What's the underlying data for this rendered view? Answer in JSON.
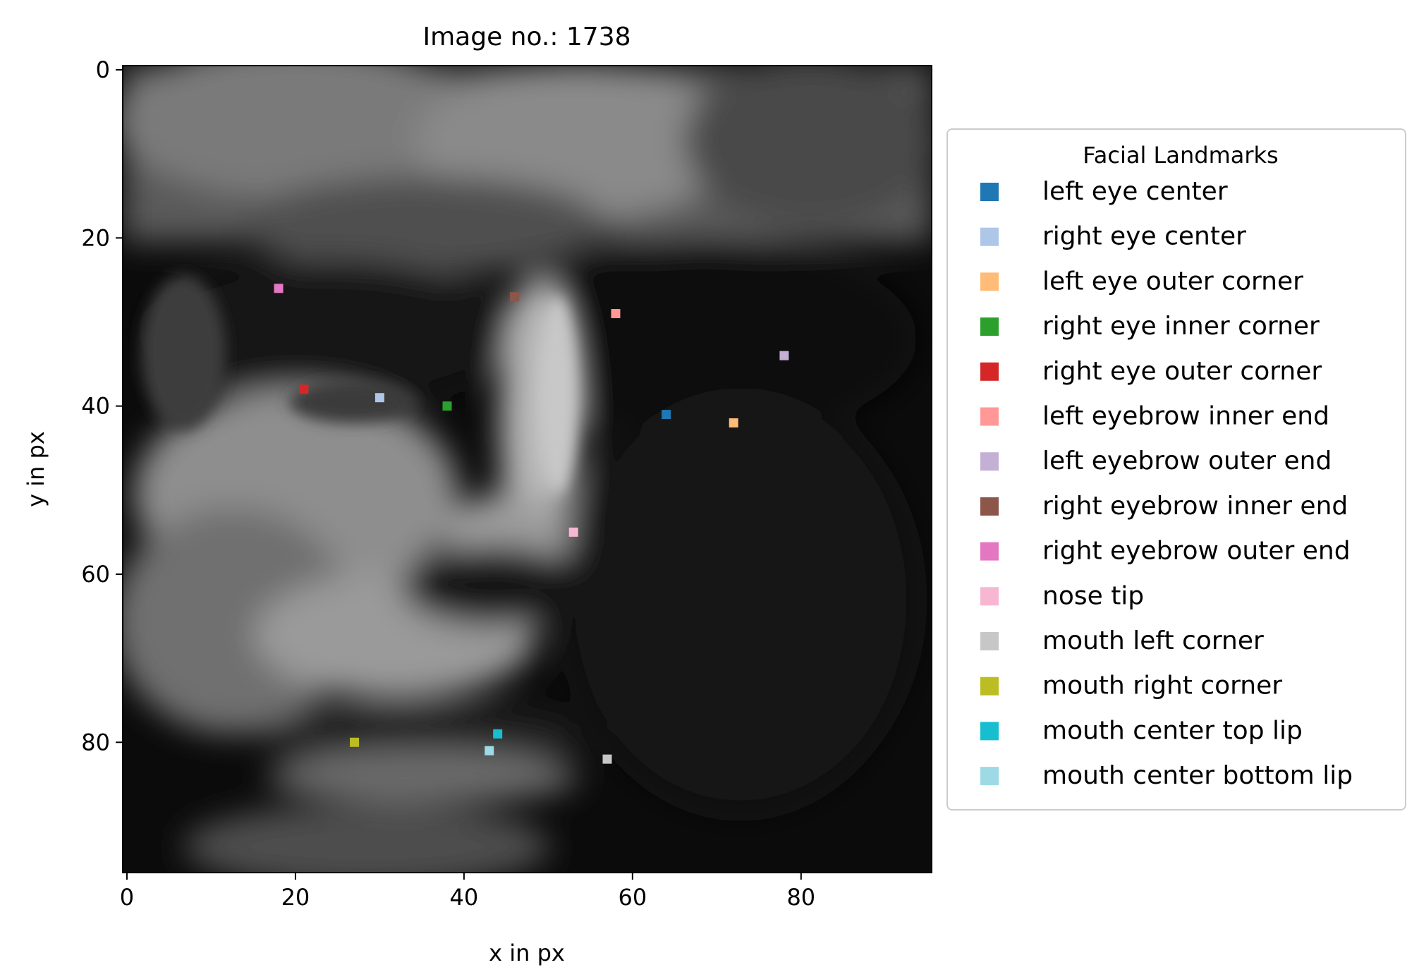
{
  "chart_data": {
    "type": "scatter",
    "title": "Image no.: 1738",
    "xlabel": "x in px",
    "ylabel": "y in px",
    "xlim": [
      -0.5,
      95.5
    ],
    "ylim": [
      95.5,
      -0.5
    ],
    "xticks": [
      0,
      20,
      40,
      60,
      80
    ],
    "yticks": [
      0,
      20,
      40,
      60,
      80
    ],
    "grid": false,
    "background": "grayscale face photograph",
    "legend": {
      "title": "Facial Landmarks",
      "placement": "right, outside plot"
    },
    "series": [
      {
        "name": "left eye center",
        "color": "#1f77b4",
        "x": 64,
        "y": 41
      },
      {
        "name": "right eye center",
        "color": "#aec7e8",
        "x": 30,
        "y": 39
      },
      {
        "name": "left eye outer corner",
        "color": "#ffbb78",
        "x": 72,
        "y": 42
      },
      {
        "name": "right eye inner corner",
        "color": "#2ca02c",
        "x": 38,
        "y": 40
      },
      {
        "name": "right eye outer corner",
        "color": "#d62728",
        "x": 21,
        "y": 38
      },
      {
        "name": "left eyebrow inner end",
        "color": "#ff9896",
        "x": 58,
        "y": 29
      },
      {
        "name": "left eyebrow outer end",
        "color": "#c5b0d5",
        "x": 78,
        "y": 34
      },
      {
        "name": "right eyebrow inner end",
        "color": "#8c564b",
        "x": 46,
        "y": 27
      },
      {
        "name": "right eyebrow outer end",
        "color": "#e377c2",
        "x": 18,
        "y": 26
      },
      {
        "name": "nose tip",
        "color": "#f7b6d2",
        "x": 53,
        "y": 55
      },
      {
        "name": "mouth left corner",
        "color": "#c7c7c7",
        "x": 57,
        "y": 82
      },
      {
        "name": "mouth right corner",
        "color": "#bcbd22",
        "x": 27,
        "y": 80
      },
      {
        "name": "mouth center top lip",
        "color": "#17becf",
        "x": 44,
        "y": 79
      },
      {
        "name": "mouth center bottom lip",
        "color": "#9edae5",
        "x": 43,
        "y": 81
      }
    ]
  }
}
